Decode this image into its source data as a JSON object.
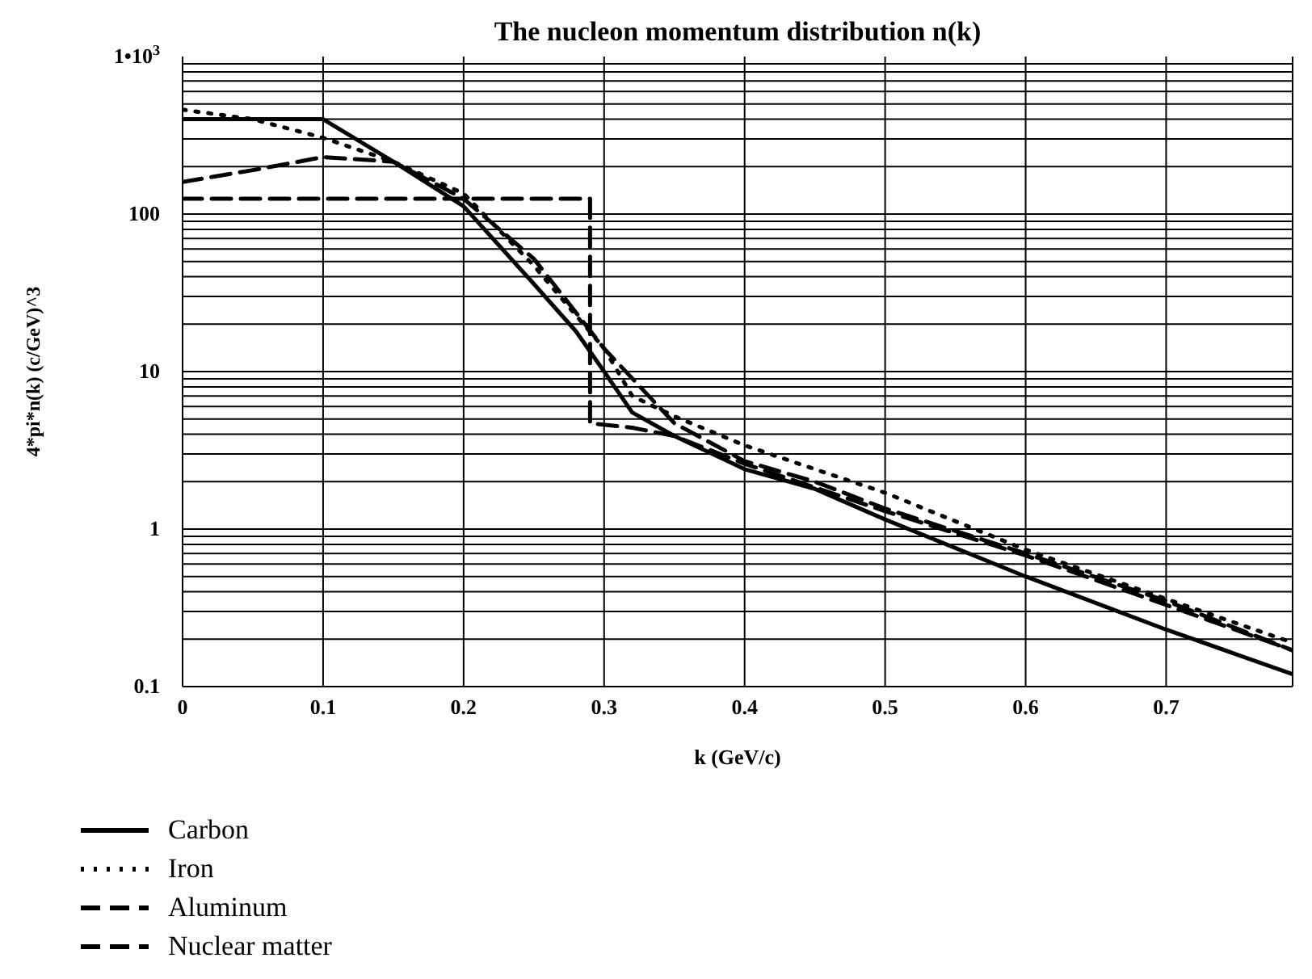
{
  "chart_data": {
    "type": "line",
    "title": "The nucleon momentum distribution n(k)",
    "xlabel": "k (GeV/c)",
    "ylabel": "4*pi*n(k) (c/GeV)^3",
    "log": "y",
    "grid": true,
    "legend": "bottom left",
    "marker": "none",
    "xlim": [
      0,
      0.79
    ],
    "xticks": [
      0,
      0.1,
      0.2,
      0.3,
      0.4,
      0.5,
      0.6,
      0.7
    ],
    "ylim": [
      0.1,
      1000
    ],
    "yticks": [
      0.1,
      1,
      10,
      100,
      {
        "value": 1000,
        "label": "1•10$^{3}$"
      }
    ],
    "series": [
      {
        "name": "Carbon",
        "color": "#000000",
        "line_style": "solid",
        "x": [
          0,
          0.05,
          0.1,
          0.15,
          0.2,
          0.25,
          0.28,
          0.3,
          0.32,
          0.35,
          0.4,
          0.45,
          0.5,
          0.6,
          0.7,
          0.79
        ],
        "values": [
          400,
          400,
          400,
          215,
          112,
          36,
          18,
          10,
          5.5,
          3.9,
          2.4,
          1.8,
          1.15,
          0.5,
          0.23,
          0.12
        ]
      },
      {
        "name": "Iron",
        "color": "#000000",
        "line_style": "dotted",
        "x": [
          0,
          0.05,
          0.1,
          0.15,
          0.2,
          0.25,
          0.3,
          0.32,
          0.35,
          0.4,
          0.45,
          0.5,
          0.6,
          0.7,
          0.79
        ],
        "values": [
          460,
          400,
          305,
          215,
          135,
          47,
          14,
          7,
          5.2,
          3.4,
          2.4,
          1.7,
          0.74,
          0.36,
          0.19
        ]
      },
      {
        "name": "Aluminum",
        "color": "#000000",
        "line_style": "dashed",
        "x": [
          0,
          0.05,
          0.1,
          0.15,
          0.2,
          0.25,
          0.3,
          0.35,
          0.4,
          0.45,
          0.5,
          0.6,
          0.7,
          0.79
        ],
        "values": [
          160,
          190,
          230,
          215,
          125,
          52,
          14,
          4.7,
          2.7,
          2.0,
          1.35,
          0.7,
          0.35,
          0.17
        ]
      },
      {
        "name": "Nuclear matter",
        "color": "#000000",
        "line_style": "dashed",
        "x": [
          0,
          0.1,
          0.2,
          0.29,
          0.29,
          0.32,
          0.35,
          0.4,
          0.5,
          0.6,
          0.7,
          0.79
        ],
        "values": [
          125,
          125,
          125,
          125,
          4.7,
          4.4,
          3.9,
          2.6,
          1.3,
          0.68,
          0.33,
          0.17
        ]
      }
    ]
  }
}
